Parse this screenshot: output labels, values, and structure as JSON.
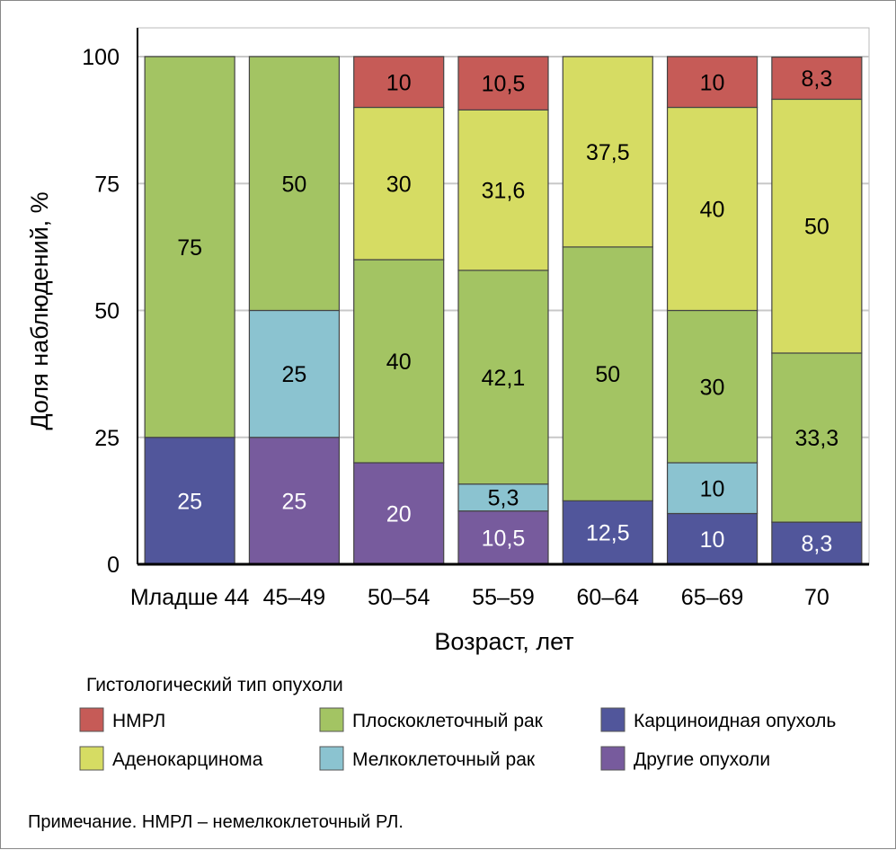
{
  "chart_data": {
    "type": "bar",
    "stacked": true,
    "xlabel": "Возраст, лет",
    "ylabel": "Доля наблюдений, %",
    "ylim": [
      0,
      100
    ],
    "yticks": [
      "0",
      "25",
      "50",
      "75",
      "100"
    ],
    "grid": true,
    "categories": [
      "Младше 44",
      "45–49",
      "50–54",
      "55–59",
      "60–64",
      "65–69",
      "70"
    ],
    "series": [
      {
        "name": "Карциноидная опухоль",
        "color": "#51569b",
        "label_color": "#ffffff",
        "values": [
          25,
          0,
          0,
          0,
          12.5,
          10,
          8.3
        ],
        "labels": [
          "25",
          "",
          "",
          "",
          "12,5",
          "10",
          "8,3"
        ]
      },
      {
        "name": "Другие опухоли",
        "color": "#775b9d",
        "label_color": "#ffffff",
        "values": [
          0,
          25,
          20,
          10.5,
          0,
          0,
          0
        ],
        "labels": [
          "",
          "25",
          "20",
          "10,5",
          "",
          "",
          ""
        ]
      },
      {
        "name": "Мелкоклеточный рак",
        "color": "#8bc3d0",
        "label_color": "#000000",
        "values": [
          0,
          25,
          0,
          5.3,
          0,
          10,
          0
        ],
        "labels": [
          "",
          "25",
          "",
          "5,3",
          "",
          "10",
          ""
        ]
      },
      {
        "name": "Плоскоклеточный рак",
        "color": "#a3c463",
        "label_color": "#000000",
        "values": [
          75,
          50,
          40,
          42.1,
          50,
          30,
          33.3
        ],
        "labels": [
          "75",
          "50",
          "40",
          "42,1",
          "50",
          "30",
          "33,3"
        ]
      },
      {
        "name": "Аденокарцинома",
        "color": "#d6dc63",
        "label_color": "#000000",
        "values": [
          0,
          0,
          30,
          31.6,
          37.5,
          40,
          50
        ],
        "labels": [
          "",
          "",
          "30",
          "31,6",
          "37,5",
          "40",
          "50"
        ]
      },
      {
        "name": "НМРЛ",
        "color": "#c65b57",
        "label_color": "#000000",
        "values": [
          0,
          0,
          10,
          10.5,
          0,
          10,
          8.3
        ],
        "labels": [
          "",
          "",
          "10",
          "10,5",
          "",
          "10",
          "8,3"
        ]
      }
    ],
    "legend": {
      "title": "Гистологический тип опухоли",
      "placement": "bottom",
      "items": [
        "НМРЛ",
        "Аденокарцинома",
        "Плоскоклеточный рак",
        "Мелкоклеточный рак",
        "Карциноидная опухоль",
        "Другие опухоли"
      ],
      "colors": [
        "#c65b57",
        "#d6dc63",
        "#a3c463",
        "#8bc3d0",
        "#51569b",
        "#775b9d"
      ]
    }
  },
  "note": "Примечание. НМРЛ – немелкоклеточный РЛ."
}
